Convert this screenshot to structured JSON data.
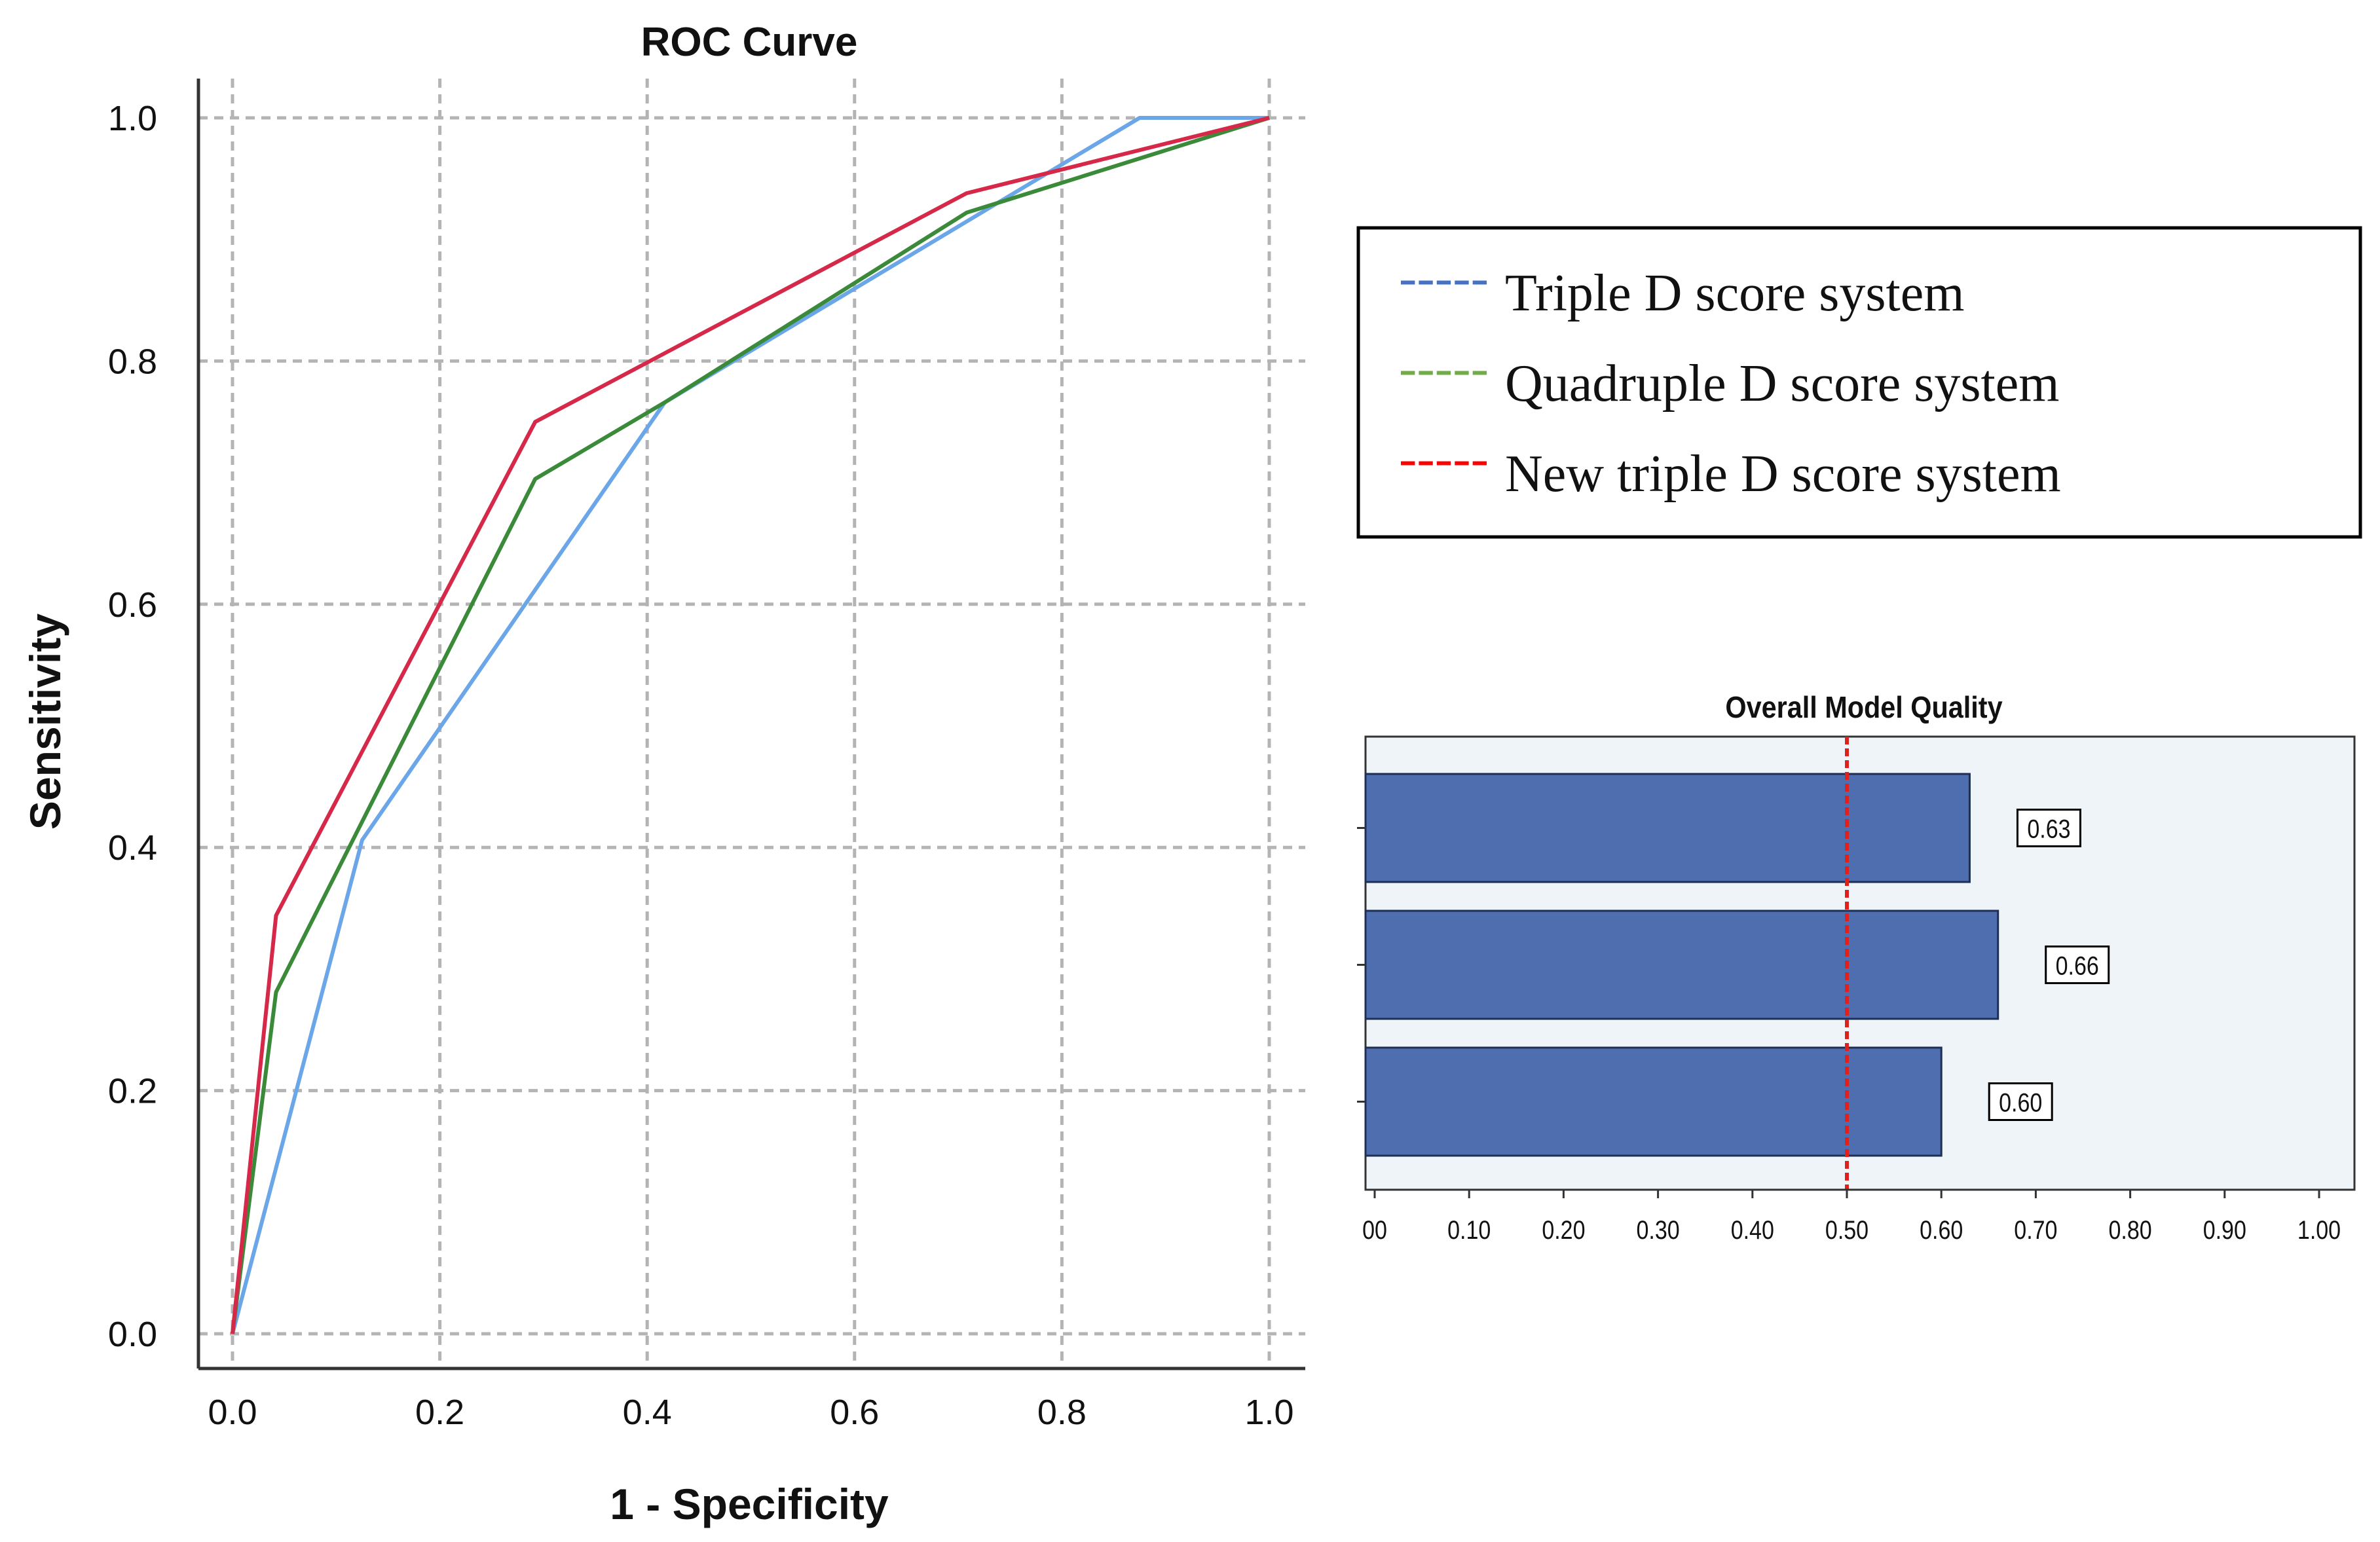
{
  "chart_data": [
    {
      "type": "line",
      "title": "ROC Curve",
      "xlabel": "1 - Specificity",
      "ylabel": "Sensitivity",
      "xlim": [
        0,
        1
      ],
      "ylim": [
        0,
        1
      ],
      "grid": true,
      "x_ticks": [
        "0.0",
        "0.2",
        "0.4",
        "0.6",
        "0.8",
        "1.0"
      ],
      "y_ticks": [
        "0.0",
        "0.2",
        "0.4",
        "0.6",
        "0.8",
        "1.0"
      ],
      "series": [
        {
          "name": "Triple D score system",
          "color": "#6aa6e8",
          "legend_color": "#4472c4",
          "points": [
            [
              0,
              0
            ],
            [
              0.125,
              0.406
            ],
            [
              0.417,
              0.766
            ],
            [
              0.875,
              1.0
            ],
            [
              1.0,
              1.0
            ]
          ]
        },
        {
          "name": "Quadruple D score system",
          "color": "#3a8a3a",
          "legend_color": "#70ad47",
          "points": [
            [
              0,
              0
            ],
            [
              0.042,
              0.281
            ],
            [
              0.292,
              0.703
            ],
            [
              0.417,
              0.766
            ],
            [
              0.708,
              0.922
            ],
            [
              1.0,
              1.0
            ]
          ]
        },
        {
          "name": "New triple D score system",
          "color": "#d6294a",
          "legend_color": "#ff0000",
          "points": [
            [
              0,
              0
            ],
            [
              0.042,
              0.344
            ],
            [
              0.292,
              0.75
            ],
            [
              0.708,
              0.938
            ],
            [
              1.0,
              1.0
            ]
          ]
        }
      ],
      "legend": {
        "placement": "right",
        "entries": [
          {
            "symbol": "-----",
            "label": "Triple D score system"
          },
          {
            "symbol": "-----",
            "label": "Quadruple D score system"
          },
          {
            "symbol": "-----",
            "label": "New triple D score system"
          }
        ]
      }
    },
    {
      "type": "bar",
      "orientation": "horizontal",
      "title": "Overall Model Quality",
      "xlim": [
        0,
        1.0
      ],
      "x_ticks": [
        ".00",
        "0.10",
        "0.20",
        "0.30",
        "0.40",
        "0.50",
        "0.60",
        "0.70",
        "0.80",
        "0.90",
        "1.00"
      ],
      "x_tick_labels_shown": [
        "00",
        "0.10",
        "0.20",
        "0.30",
        "0.40",
        "0.50",
        "0.60",
        "0.70",
        "0.80",
        "0.90",
        "1.00"
      ],
      "values": [
        0.63,
        0.66,
        0.6
      ],
      "labels": [
        "0.63",
        "0.66",
        "0.60"
      ],
      "reference_line": 0.5,
      "bar_color": "#4f6eb0",
      "background": "#eff4f9",
      "reference_color": "#e0201c"
    }
  ]
}
